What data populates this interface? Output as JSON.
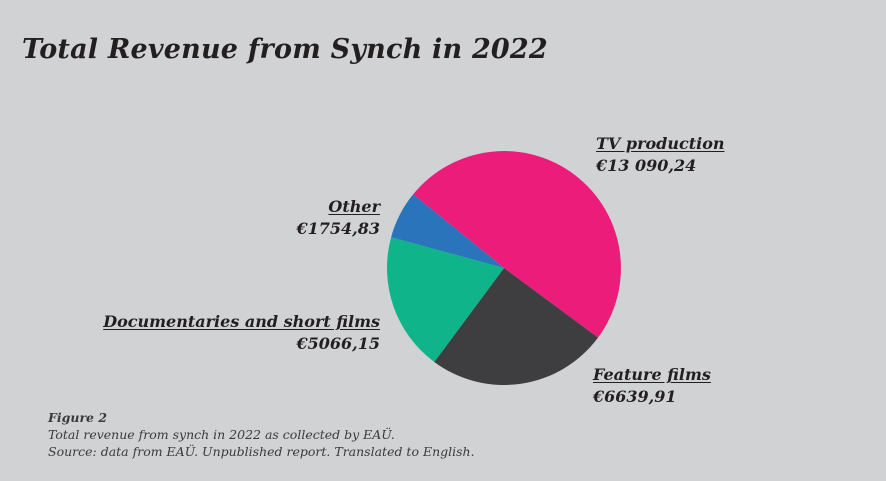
{
  "title": "Total Revenue from Synch in 2022",
  "chart_data": {
    "type": "pie",
    "title": "Total Revenue from Synch in 2022",
    "slices": [
      {
        "name": "TV production",
        "value": 13090.24,
        "label": "€13 090,24",
        "color": "#ec1d7a"
      },
      {
        "name": "Feature films",
        "value": 6639.91,
        "label": "€6639,91",
        "color": "#3e3d40"
      },
      {
        "name": "Documentaries and short films",
        "value": 5066.15,
        "label": "€5066,15",
        "color": "#10b48a"
      },
      {
        "name": "Other",
        "value": 1754.83,
        "label": "€1754,83",
        "color": "#2a74bb"
      }
    ]
  },
  "caption": {
    "figure": "Figure 2",
    "line1": "Total revenue from synch in 2022 as collected by EAÜ.",
    "line2": "Source: data from EAÜ. Unpublished report. Translated to English."
  }
}
